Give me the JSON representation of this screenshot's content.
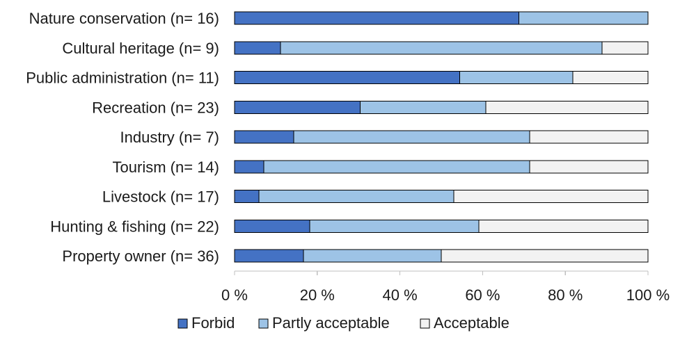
{
  "chart_data": {
    "type": "bar",
    "orientation": "horizontal",
    "stacked": true,
    "title": "",
    "xlabel": "",
    "ylabel": "",
    "xlim": [
      0,
      100
    ],
    "x_ticks": [
      0,
      20,
      40,
      60,
      80,
      100
    ],
    "x_tick_labels": [
      "0 %",
      "20 %",
      "40 %",
      "60 %",
      "80 %",
      "100 %"
    ],
    "grid": false,
    "legend_position": "bottom",
    "categories": [
      "Nature conservation (n= 16)",
      "Cultural heritage (n= 9)",
      "Public administration (n= 11)",
      "Recreation (n= 23)",
      "Industry (n= 7)",
      "Tourism (n= 14)",
      "Livestock (n= 17)",
      "Hunting & fishing (n= 22)",
      "Property owner (n= 36)"
    ],
    "series": [
      {
        "name": "Forbid",
        "color": "#4472c4",
        "values": [
          68.8,
          11.1,
          54.5,
          30.4,
          14.3,
          7.1,
          5.9,
          18.2,
          16.7
        ]
      },
      {
        "name": "Partly acceptable",
        "color": "#9dc3e6",
        "values": [
          31.2,
          77.8,
          27.3,
          30.4,
          57.1,
          64.3,
          47.1,
          40.9,
          33.3
        ]
      },
      {
        "name": "Acceptable",
        "color": "#f2f2f2",
        "values": [
          0,
          11.1,
          18.2,
          39.2,
          28.6,
          28.6,
          47.0,
          40.9,
          50.0
        ]
      }
    ]
  }
}
